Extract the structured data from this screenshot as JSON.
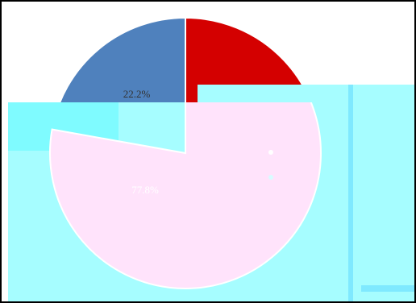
{
  "chart_data": {
    "type": "pie",
    "categories": [
      null,
      null
    ],
    "values": [
      22.2,
      77.8
    ],
    "value_labels": [
      "22.2%",
      "77.8%"
    ],
    "colors": [
      "#4f81bd",
      "#d40000"
    ]
  }
}
